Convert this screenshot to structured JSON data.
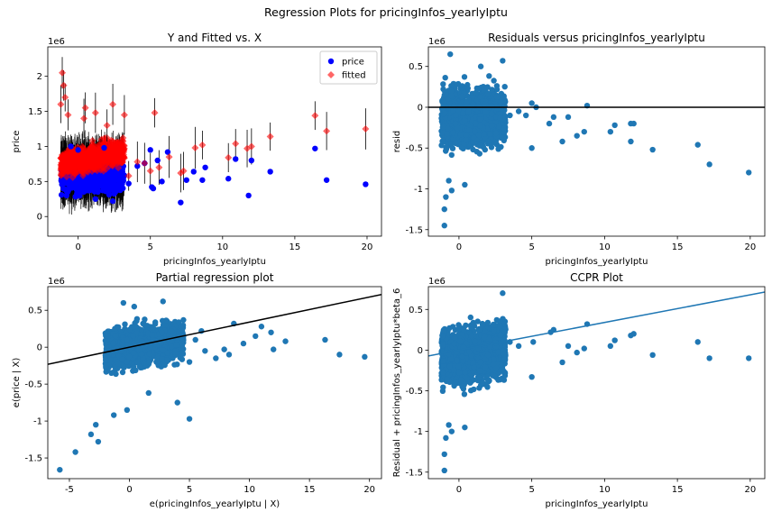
{
  "figure": {
    "suptitle": "Regression Plots for pricingInfos_yearlyIptu"
  },
  "colors": {
    "price": "#0000ff",
    "fitted": "#ff0000",
    "scatter": "#1f77b4",
    "line_black": "#000000",
    "line_blue": "#1f77b4"
  },
  "chart_data": [
    {
      "type": "scatter",
      "title": "Y and Fitted vs. X",
      "xlabel": "pricingInfos_yearlyIptu",
      "ylabel": "price",
      "y_multiplier_label": "1e6",
      "xlim": [
        -2.1,
        21.0
      ],
      "ylim": [
        -0.28,
        2.42
      ],
      "xticks": [
        0,
        5,
        10,
        15,
        20
      ],
      "yticks": [
        0.0,
        0.5,
        1.0,
        1.5,
        2.0
      ],
      "grid": false,
      "legend": {
        "position": "top-right",
        "entries": [
          "price",
          "fitted"
        ]
      },
      "series": [
        {
          "name": "price",
          "marker": "circle",
          "points": [
            [
              3.5,
              0.47
            ],
            [
              4.1,
              0.72
            ],
            [
              4.6,
              0.76
            ],
            [
              5.0,
              0.95
            ],
            [
              5.1,
              0.42
            ],
            [
              5.2,
              0.4
            ],
            [
              5.5,
              0.8
            ],
            [
              5.8,
              0.5
            ],
            [
              6.2,
              0.92
            ],
            [
              7.1,
              0.2
            ],
            [
              7.5,
              0.52
            ],
            [
              8.0,
              0.64
            ],
            [
              8.6,
              0.52
            ],
            [
              8.8,
              0.7
            ],
            [
              10.4,
              0.54
            ],
            [
              10.9,
              0.82
            ],
            [
              11.8,
              0.3
            ],
            [
              12.0,
              0.8
            ],
            [
              13.3,
              0.64
            ],
            [
              16.4,
              0.97
            ],
            [
              17.2,
              0.52
            ],
            [
              19.9,
              0.46
            ],
            [
              -0.5,
              1.0
            ],
            [
              0.0,
              0.95
            ],
            [
              1.2,
              0.25
            ],
            [
              2.4,
              0.22
            ],
            [
              1.8,
              0.98
            ],
            [
              -0.8,
              0.3
            ]
          ]
        },
        {
          "name": "fitted",
          "marker": "diamond",
          "points": [
            [
              3.5,
              0.58
            ],
            [
              4.1,
              0.78
            ],
            [
              4.6,
              0.76
            ],
            [
              5.0,
              0.65
            ],
            [
              5.3,
              1.48
            ],
            [
              5.6,
              0.7
            ],
            [
              6.3,
              0.85
            ],
            [
              7.1,
              0.62
            ],
            [
              7.3,
              0.65
            ],
            [
              8.1,
              0.98
            ],
            [
              8.6,
              1.02
            ],
            [
              10.4,
              0.84
            ],
            [
              10.9,
              1.04
            ],
            [
              11.7,
              0.97
            ],
            [
              12.0,
              1.0
            ],
            [
              13.3,
              1.14
            ],
            [
              16.4,
              1.44
            ],
            [
              17.2,
              1.22
            ],
            [
              19.9,
              1.25
            ],
            [
              -1.1,
              2.05
            ],
            [
              -1.0,
              1.87
            ],
            [
              -0.9,
              1.7
            ],
            [
              -1.2,
              1.6
            ],
            [
              -0.7,
              1.45
            ],
            [
              0.4,
              1.4
            ],
            [
              0.5,
              1.55
            ],
            [
              1.2,
              1.48
            ],
            [
              2.4,
              1.6
            ],
            [
              3.2,
              1.45
            ],
            [
              2.0,
              1.3
            ]
          ]
        }
      ],
      "cloud": {
        "x_range": [
          -1.2,
          3.2
        ],
        "y_range": [
          0.1,
          1.3
        ],
        "points_per_series": 900
      }
    },
    {
      "type": "scatter",
      "title": "Residuals versus pricingInfos_yearlyIptu",
      "xlabel": "pricingInfos_yearlyIptu",
      "ylabel": "resid",
      "y_multiplier_label": "1e6",
      "xlim": [
        -2.1,
        21.0
      ],
      "ylim": [
        -1.58,
        0.74
      ],
      "xticks": [
        0,
        5,
        10,
        15,
        20
      ],
      "yticks": [
        -1.5,
        -1.0,
        -0.5,
        0.0,
        0.5
      ],
      "hline": 0.0,
      "grid": false,
      "points": [
        [
          3.5,
          -0.1
        ],
        [
          4.1,
          -0.05
        ],
        [
          4.6,
          -0.1
        ],
        [
          5.0,
          -0.5
        ],
        [
          5.0,
          0.05
        ],
        [
          5.3,
          0.0
        ],
        [
          6.2,
          -0.2
        ],
        [
          6.5,
          -0.12
        ],
        [
          7.1,
          -0.42
        ],
        [
          7.5,
          -0.12
        ],
        [
          8.1,
          -0.35
        ],
        [
          8.6,
          -0.3
        ],
        [
          8.8,
          0.02
        ],
        [
          10.4,
          -0.3
        ],
        [
          10.7,
          -0.22
        ],
        [
          11.8,
          -0.42
        ],
        [
          11.8,
          -0.2
        ],
        [
          12.0,
          -0.2
        ],
        [
          13.3,
          -0.52
        ],
        [
          16.4,
          -0.46
        ],
        [
          17.2,
          -0.7
        ],
        [
          19.9,
          -0.8
        ],
        [
          -1.0,
          -1.45
        ],
        [
          -1.0,
          -1.25
        ],
        [
          -0.9,
          -1.1
        ],
        [
          -0.5,
          -1.02
        ],
        [
          0.4,
          -0.95
        ],
        [
          -0.7,
          -0.9
        ],
        [
          -0.6,
          0.65
        ],
        [
          1.5,
          0.5
        ],
        [
          3.0,
          0.57
        ]
      ],
      "cloud": {
        "x_range": [
          -1.2,
          3.2
        ],
        "y_range": [
          -0.7,
          0.45
        ],
        "points": 1500
      }
    },
    {
      "type": "scatter",
      "title": "Partial regression plot",
      "xlabel": "e(pricingInfos_yearlyIptu | X)",
      "ylabel": "e(price | X)",
      "y_multiplier_label": "1e6",
      "xlim": [
        -6.8,
        21.0
      ],
      "ylim": [
        -1.78,
        0.82
      ],
      "xticks": [
        -5,
        0,
        5,
        10,
        15,
        20
      ],
      "yticks": [
        -1.5,
        -1.0,
        -0.5,
        0.0,
        0.5
      ],
      "fit_line": {
        "slope": 0.034,
        "intercept": 0.0
      },
      "grid": false,
      "points": [
        [
          -5.8,
          -1.66
        ],
        [
          -4.5,
          -1.42
        ],
        [
          -3.2,
          -1.18
        ],
        [
          -2.8,
          -1.05
        ],
        [
          -2.6,
          -1.28
        ],
        [
          -1.3,
          -0.92
        ],
        [
          -0.2,
          -0.85
        ],
        [
          1.6,
          -0.62
        ],
        [
          4.0,
          -0.75
        ],
        [
          5.0,
          -0.97
        ],
        [
          3.5,
          0.22
        ],
        [
          4.5,
          0.15
        ],
        [
          5.0,
          -0.2
        ],
        [
          5.5,
          0.1
        ],
        [
          6.0,
          0.22
        ],
        [
          6.3,
          -0.05
        ],
        [
          7.2,
          -0.15
        ],
        [
          7.9,
          -0.03
        ],
        [
          8.3,
          -0.1
        ],
        [
          8.7,
          0.32
        ],
        [
          9.5,
          0.05
        ],
        [
          10.5,
          0.15
        ],
        [
          11.0,
          0.28
        ],
        [
          11.8,
          0.2
        ],
        [
          12.0,
          -0.03
        ],
        [
          13.0,
          0.08
        ],
        [
          16.3,
          0.1
        ],
        [
          17.5,
          -0.1
        ],
        [
          19.6,
          -0.13
        ],
        [
          -0.5,
          0.6
        ],
        [
          0.4,
          0.55
        ],
        [
          2.8,
          0.62
        ],
        [
          -1.5,
          -0.35
        ]
      ],
      "cloud": {
        "x_range": [
          -2.0,
          4.5
        ],
        "y_range": [
          -0.55,
          0.45
        ],
        "points": 1400
      }
    },
    {
      "type": "scatter",
      "title": "CCPR Plot",
      "xlabel": "pricingInfos_yearlyIptu",
      "ylabel": "Residual + pricingInfos_yearlyIptu*beta_6",
      "y_multiplier_label": "1e6",
      "xlim": [
        -2.1,
        21.0
      ],
      "ylim": [
        -1.58,
        0.78
      ],
      "xticks": [
        0,
        5,
        10,
        15,
        20
      ],
      "yticks": [
        -1.5,
        -1.0,
        -0.5,
        0.0,
        0.5
      ],
      "fit_line": {
        "slope": 0.034,
        "intercept": 0.0
      },
      "grid": false,
      "points": [
        [
          3.5,
          0.1
        ],
        [
          4.1,
          0.05
        ],
        [
          5.0,
          -0.33
        ],
        [
          5.1,
          0.1
        ],
        [
          6.3,
          0.22
        ],
        [
          6.5,
          0.25
        ],
        [
          7.1,
          -0.15
        ],
        [
          7.5,
          0.05
        ],
        [
          8.1,
          -0.03
        ],
        [
          8.6,
          0.02
        ],
        [
          8.8,
          0.32
        ],
        [
          10.4,
          0.05
        ],
        [
          10.7,
          0.12
        ],
        [
          11.8,
          0.18
        ],
        [
          12.0,
          0.2
        ],
        [
          13.3,
          -0.06
        ],
        [
          16.4,
          0.1
        ],
        [
          17.2,
          -0.1
        ],
        [
          19.9,
          -0.1
        ],
        [
          -1.0,
          -1.48
        ],
        [
          -1.0,
          -1.28
        ],
        [
          -0.9,
          -1.08
        ],
        [
          -0.5,
          -1.0
        ],
        [
          0.4,
          -0.95
        ],
        [
          -0.7,
          -0.92
        ],
        [
          3.0,
          0.7
        ]
      ],
      "cloud": {
        "x_range": [
          -1.2,
          3.2
        ],
        "y_range": [
          -0.65,
          0.5
        ],
        "points": 1500
      }
    }
  ]
}
